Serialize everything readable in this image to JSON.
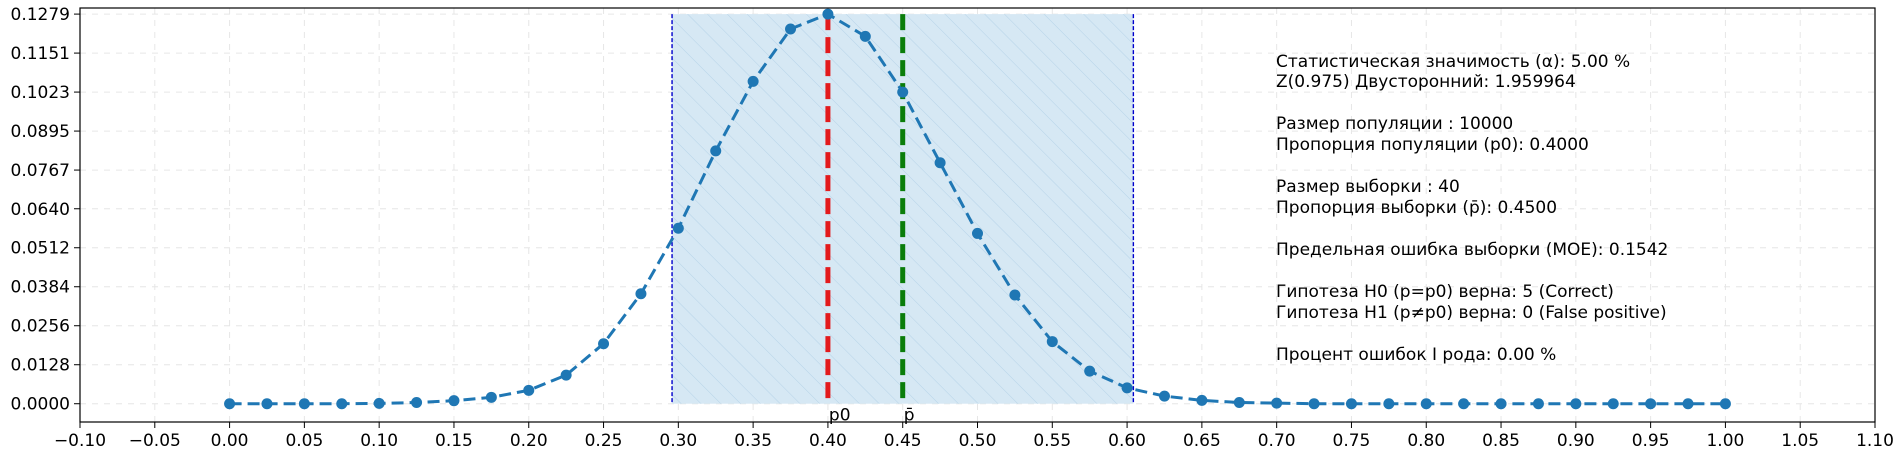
{
  "chart_data": {
    "type": "line",
    "title": "",
    "xlabel": "",
    "ylabel": "",
    "xlim": [
      -0.1,
      1.1
    ],
    "ylim": [
      -0.006,
      0.1299
    ],
    "x_ticks": [
      "−0.10",
      "−0.05",
      "0.00",
      "0.05",
      "0.10",
      "0.15",
      "0.20",
      "0.25",
      "0.30",
      "0.35",
      "0.40",
      "0.45",
      "0.50",
      "0.55",
      "0.60",
      "0.65",
      "0.70",
      "0.75",
      "0.80",
      "0.85",
      "0.90",
      "0.95",
      "1.00",
      "1.05",
      "1.10"
    ],
    "x_tick_values": [
      -0.1,
      -0.05,
      0.0,
      0.05,
      0.1,
      0.15,
      0.2,
      0.25,
      0.3,
      0.35,
      0.4,
      0.45,
      0.5,
      0.55,
      0.6,
      0.65,
      0.7,
      0.75,
      0.8,
      0.85,
      0.9,
      0.95,
      1.0,
      1.05,
      1.1
    ],
    "y_ticks": [
      "0.0000",
      "0.0128",
      "0.0256",
      "0.0384",
      "0.0512",
      "0.0640",
      "0.0767",
      "0.0895",
      "0.1023",
      "0.1151",
      "0.1279"
    ],
    "y_tick_values": [
      0.0,
      0.0128,
      0.0256,
      0.0384,
      0.0512,
      0.064,
      0.0767,
      0.0895,
      0.1023,
      0.1151,
      0.1279
    ],
    "grid": true,
    "series": [
      {
        "color": "#1f77b4",
        "style": "dashed-with-markers",
        "x": [
          0.0,
          0.025,
          0.05,
          0.075,
          0.1,
          0.125,
          0.15,
          0.175,
          0.2,
          0.225,
          0.25,
          0.275,
          0.3,
          0.325,
          0.35,
          0.375,
          0.4,
          0.425,
          0.45,
          0.475,
          0.5,
          0.525,
          0.55,
          0.575,
          0.6,
          0.625,
          0.65,
          0.675,
          0.7,
          0.725,
          0.75,
          0.775,
          0.8,
          0.825,
          0.85,
          0.875,
          0.9,
          0.925,
          0.95,
          0.975,
          1.0
        ],
        "y": [
          0.0,
          0.0,
          0.0,
          0.0,
          0.0001,
          0.0004,
          0.001,
          0.0021,
          0.0044,
          0.0094,
          0.0197,
          0.0361,
          0.0576,
          0.083,
          0.1058,
          0.123,
          0.1279,
          0.1206,
          0.1023,
          0.0791,
          0.0559,
          0.0357,
          0.0204,
          0.0107,
          0.0052,
          0.0025,
          0.0011,
          0.0004,
          0.0002,
          0.0,
          0.0,
          0.0,
          0.0,
          0.0,
          0.0,
          0.0,
          0.0,
          0.0,
          0.0,
          0.0,
          0.0
        ]
      }
    ],
    "confidence_band": {
      "x_from": 0.2958,
      "x_to": 0.6042,
      "fill": "#d6e8f4",
      "hatch": true,
      "edge_color": "#0000cc"
    },
    "vertical_lines": [
      {
        "x": 0.4,
        "color": "#e31a1c",
        "label": "p0"
      },
      {
        "x": 0.45,
        "color": "#0a7d0a",
        "label": "p̄"
      }
    ],
    "annotations": [
      "Статистическая значимость (α): 5.00 %",
      "Z(0.975) Двусторонний: 1.959964",
      "",
      "Размер популяции : 10000",
      "Пропорция популяции (p0): 0.4000",
      "",
      "Размер выборки : 40",
      "Пропорция выборки (p̄): 0.4500",
      "",
      "Предельная ошибка выборки (MOE): 0.1542",
      "",
      "Гипотеза H0 (p=p0) верна: 5 (Correct)",
      "Гипотеза H1 (p≠p0) верна: 0 (False positive)",
      "",
      "Процент ошибок I рода: 0.00 %"
    ]
  }
}
